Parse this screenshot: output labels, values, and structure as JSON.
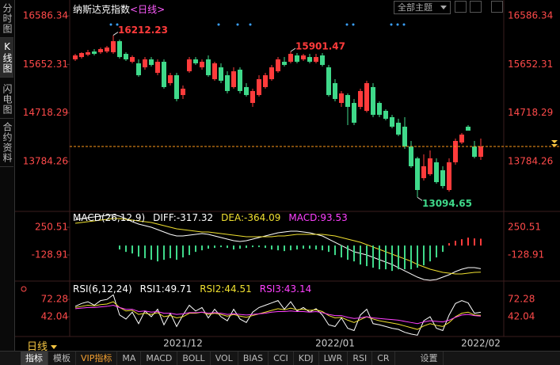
{
  "header": {
    "title": "纳斯达克指数",
    "period": "<日线>",
    "theme": "全部主题"
  },
  "sidebar": [
    "分时图",
    "K线图",
    "闪电图",
    "合约资料"
  ],
  "period_selector": "日线",
  "toolbar": [
    "指标",
    "模板",
    "VIP指标",
    "MA",
    "MACD",
    "BOLL",
    "VOL",
    "BIAS",
    "CCI",
    "KDJ",
    "LWR",
    "RSI",
    "CR",
    "设置"
  ],
  "chart_data": [
    {
      "type": "candlestick",
      "categories": [
        null,
        null,
        null,
        null,
        null,
        null,
        null,
        null,
        null,
        null,
        null,
        null,
        null,
        null,
        null,
        null,
        null,
        "2021/12",
        null,
        null,
        null,
        null,
        null,
        null,
        null,
        null,
        null,
        null,
        null,
        null,
        null,
        null,
        null,
        null,
        null,
        null,
        null,
        null,
        null,
        null,
        null,
        "2022/01",
        null,
        null,
        null,
        null,
        null,
        null,
        null,
        null,
        null,
        null,
        null,
        null,
        null,
        null,
        null,
        null,
        null,
        null,
        null,
        null,
        null,
        null,
        "2022/02"
      ],
      "open": [
        15749,
        15794,
        15840,
        15901,
        15886,
        15901,
        15886,
        16099,
        15855,
        15703,
        15673,
        15596,
        15749,
        15490,
        15703,
        15292,
        15444,
        15063,
        15520,
        15749,
        15596,
        15749,
        15368,
        15596,
        15444,
        15216,
        15551,
        15216,
        14911,
        15063,
        15216,
        15368,
        15520,
        15703,
        15703,
        15825,
        15749,
        15794,
        15703,
        15825,
        15596,
        15292,
        14911,
        15063,
        14911,
        14835,
        14759,
        15216,
        14911,
        14759,
        14637,
        14530,
        14454,
        14073,
        13845,
        13464,
        13540,
        13769,
        13616,
        13236,
        13769,
        14150,
        14454,
        14073,
        13875
      ],
      "high": [
        15855,
        15886,
        15931,
        15947,
        15977,
        16008,
        16212.23,
        16129,
        15886,
        15825,
        15749,
        15794,
        15794,
        15749,
        15749,
        15490,
        15490,
        15246,
        15794,
        15794,
        15749,
        15825,
        15703,
        15673,
        15520,
        15596,
        15596,
        15292,
        15185,
        15444,
        15490,
        15642,
        15794,
        15794,
        15901.47,
        15871,
        15855,
        15855,
        15855,
        15871,
        15642,
        15368,
        15140,
        15094,
        14987,
        15185,
        15338,
        15292,
        14941,
        14789,
        14682,
        14606,
        14637,
        14180,
        13875,
        13921,
        13997,
        13845,
        13693,
        13845,
        14226,
        14332,
        14485,
        14180,
        14226
      ],
      "low": [
        15718,
        15764,
        15810,
        15825,
        15855,
        15871,
        15855,
        15764,
        15718,
        15673,
        15414,
        15551,
        15612,
        15444,
        15185,
        15246,
        14941,
        14987,
        15490,
        15642,
        15551,
        15414,
        15338,
        15292,
        15094,
        15185,
        15094,
        15033,
        14835,
        15033,
        15185,
        15338,
        15490,
        15612,
        15673,
        15673,
        15718,
        15673,
        15673,
        15612,
        15033,
        14941,
        14835,
        14485,
        14485,
        14789,
        14728,
        14637,
        14637,
        14576,
        14424,
        14271,
        14028,
        13662,
        13094.65,
        13418,
        13510,
        13358,
        13266,
        13205,
        13723,
        14119,
        14378,
        13845,
        13815
      ],
      "close": [
        15825,
        15871,
        15886,
        15855,
        15947,
        15977,
        16099,
        15794,
        15749,
        15794,
        15444,
        15749,
        15642,
        15703,
        15216,
        15444,
        14987,
        15185,
        15749,
        15673,
        15703,
        15444,
        15673,
        15338,
        15140,
        15520,
        15140,
        15063,
        15140,
        15368,
        15444,
        15596,
        15749,
        15642,
        15855,
        15703,
        15825,
        15703,
        15794,
        15642,
        15063,
        14987,
        15094,
        14835,
        14530,
        15140,
        15292,
        14682,
        14682,
        14606,
        14454,
        14302,
        14073,
        13693,
        13236,
        13693,
        13845,
        13388,
        13312,
        13769,
        14180,
        14302,
        14378,
        13875,
        14073
      ],
      "up_color": "#ff3b3b",
      "down_color": "#3fd98a",
      "ylim": [
        12855,
        16815
      ],
      "yticks": [
        13784.26,
        14718.29,
        15652.31,
        16586.34
      ],
      "annotations": [
        {
          "x": 6,
          "y": 16212.23
        },
        {
          "x": 34,
          "y": 15901.47
        },
        {
          "x": 54,
          "y": 13094.65
        }
      ],
      "last_price_line": true,
      "last_price_color": "#ff9a1a"
    },
    {
      "type": "macd",
      "title": "MACD(26,12,9)",
      "series": [
        {
          "name": "DIFF:",
          "color": "#ffffff",
          "mark": "line",
          "values": [
            348.1,
            369.7,
            380.6,
            391.4,
            402.3,
            413.1,
            423.9,
            402.3,
            369.7,
            326.4,
            293.9,
            272.2,
            250.5,
            218.0,
            185.5,
            152.9,
            131.3,
            131.3,
            142.1,
            152.9,
            163.8,
            152.9,
            131.3,
            109.6,
            87.9,
            66.2,
            55.4,
            66.2,
            87.9,
            109.6,
            131.3,
            152.9,
            174.6,
            185.5,
            196.3,
            196.3,
            185.5,
            174.6,
            152.9,
            131.3,
            87.9,
            44.5,
            1.2,
            -42.2,
            -85.5,
            -107.2,
            -128.9,
            -161.4,
            -194.0,
            -226.5,
            -259.0,
            -302.4,
            -345.8,
            -389.1,
            -432.4,
            -464.9,
            -475.8,
            -464.9,
            -432.4,
            -400.0,
            -356.6,
            -324.1,
            -302.4,
            -302.4,
            -317.32
          ]
        },
        {
          "name": "DEA:",
          "color": "#f0e030",
          "mark": "line",
          "values": [
            304.7,
            315.5,
            326.4,
            337.2,
            348.1,
            358.9,
            369.7,
            369.7,
            358.9,
            348.1,
            337.2,
            326.4,
            315.5,
            293.9,
            272.2,
            250.5,
            228.8,
            218.0,
            207.1,
            196.3,
            185.5,
            185.5,
            174.6,
            163.8,
            152.9,
            142.1,
            131.3,
            120.4,
            120.4,
            120.4,
            120.4,
            120.4,
            131.3,
            131.3,
            142.1,
            152.9,
            152.9,
            152.9,
            152.9,
            152.9,
            142.1,
            131.3,
            109.6,
            87.9,
            66.2,
            44.5,
            12.0,
            -20.5,
            -53.0,
            -85.5,
            -118.1,
            -150.6,
            -183.1,
            -215.6,
            -259.0,
            -291.5,
            -324.1,
            -345.8,
            -367.4,
            -378.3,
            -389.1,
            -389.1,
            -378.3,
            -367.4,
            -364.09
          ]
        },
        {
          "name": "MACD:",
          "color": "#ff40ff",
          "mark": "bar",
          "values": [
            0,
            0,
            0,
            0,
            0,
            0,
            0,
            -54.2,
            -86.7,
            -108.4,
            -151.8,
            -173.4,
            -195.1,
            -216.8,
            -195.1,
            -173.4,
            -195.1,
            -162.6,
            -130.1,
            -86.7,
            -65.0,
            -43.4,
            -32.5,
            -21.7,
            -32.5,
            -54.2,
            -43.4,
            -32.5,
            -21.7,
            -21.7,
            -32.5,
            -54.2,
            -65.0,
            -75.9,
            -65.0,
            -54.2,
            -43.4,
            -43.4,
            -54.2,
            -65.0,
            -86.7,
            -130.1,
            -162.6,
            -195.1,
            -216.8,
            -260.2,
            -281.8,
            -303.5,
            -325.2,
            -325.2,
            -346.9,
            -325.2,
            -325.2,
            -325.2,
            -303.5,
            -271.0,
            -216.8,
            -162.6,
            -86.7,
            32.5,
            65.0,
            86.7,
            108.4,
            97.6,
            93.53
          ]
        }
      ],
      "up_color": "#ff3b3b",
      "down_color": "#3fd98a",
      "ylim": [
        -519,
        435
      ],
      "yticks": [
        -128.91,
        250.51
      ]
    },
    {
      "type": "line",
      "title": "RSI(6,12,24)",
      "series": [
        {
          "name": "RSI1:",
          "color": "#ffffff",
          "values": [
            60,
            65,
            68,
            62,
            70,
            72,
            80,
            45,
            38,
            50,
            30,
            52,
            42,
            55,
            28,
            48,
            25,
            45,
            62,
            52,
            58,
            40,
            55,
            42,
            35,
            55,
            38,
            32,
            50,
            58,
            62,
            66,
            70,
            55,
            68,
            52,
            58,
            50,
            56,
            45,
            28,
            25,
            40,
            22,
            18,
            45,
            55,
            30,
            28,
            25,
            22,
            20,
            15,
            12,
            10,
            35,
            42,
            22,
            18,
            45,
            65,
            70,
            66,
            48,
            49.71
          ]
        },
        {
          "name": "RSI2:",
          "color": "#f0e030",
          "values": [
            58,
            60,
            62,
            61,
            63,
            64,
            68,
            58,
            52,
            53,
            46,
            48,
            46,
            49,
            42,
            44,
            40,
            42,
            48,
            48,
            50,
            46,
            48,
            46,
            43,
            46,
            43,
            41,
            44,
            47,
            50,
            53,
            56,
            54,
            57,
            54,
            55,
            53,
            54,
            51,
            44,
            40,
            41,
            36,
            32,
            37,
            42,
            38,
            35,
            33,
            31,
            29,
            26,
            23,
            20,
            26,
            30,
            27,
            25,
            32,
            42,
            48,
            50,
            45,
            44.51
          ]
        },
        {
          "name": "RSI3:",
          "color": "#ff40ff",
          "values": [
            56,
            57,
            58,
            58,
            59,
            60,
            62,
            58,
            55,
            55,
            51,
            52,
            50,
            51,
            48,
            48,
            46,
            47,
            49,
            49,
            50,
            48,
            49,
            48,
            46,
            47,
            46,
            45,
            46,
            47,
            48,
            50,
            51,
            51,
            52,
            51,
            51,
            50,
            51,
            49,
            46,
            44,
            44,
            41,
            39,
            40,
            42,
            40,
            39,
            38,
            37,
            36,
            34,
            32,
            30,
            33,
            35,
            34,
            33,
            36,
            41,
            45,
            46,
            44,
            43.14
          ]
        }
      ],
      "ylim": [
        -1.94,
        94.27
      ],
      "yticks": [
        42.04,
        72.28
      ]
    }
  ]
}
